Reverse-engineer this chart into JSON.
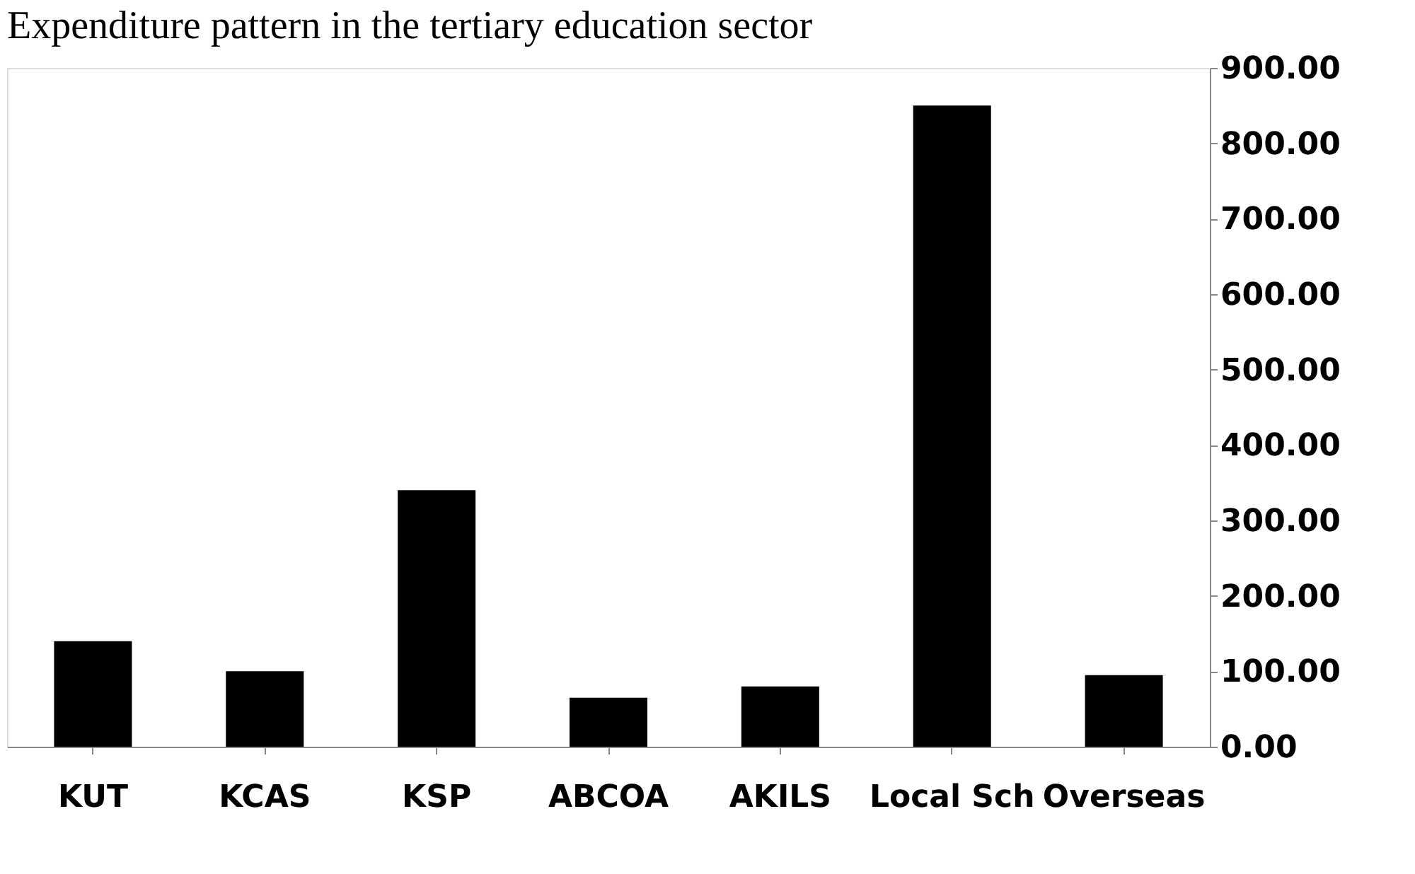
{
  "chart_data": {
    "type": "bar",
    "title": "Expenditure pattern in the tertiary education sector",
    "categories": [
      "KUT",
      "KCAS",
      "KSP",
      "ABCOA",
      "AKILS",
      "Local Sch",
      "Overseas"
    ],
    "values": [
      140,
      100,
      340,
      65,
      80,
      850,
      95
    ],
    "color": "#000000",
    "ylim": [
      0,
      900
    ],
    "yticks": [
      {
        "value": 0,
        "label": "0.00"
      },
      {
        "value": 100,
        "label": "100.00"
      },
      {
        "value": 200,
        "label": "200.00"
      },
      {
        "value": 300,
        "label": "300.00"
      },
      {
        "value": 400,
        "label": "400.00"
      },
      {
        "value": 500,
        "label": "500.00"
      },
      {
        "value": 600,
        "label": "600.00"
      },
      {
        "value": 700,
        "label": "700.00"
      },
      {
        "value": 800,
        "label": "800.00"
      },
      {
        "value": 900,
        "label": "900.00"
      }
    ],
    "grid": false
  }
}
